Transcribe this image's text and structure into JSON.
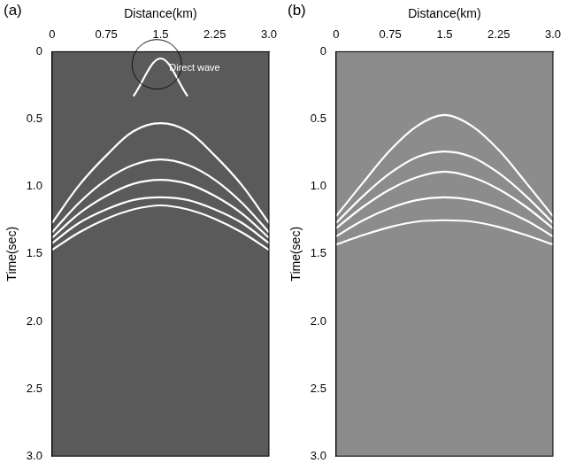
{
  "chart_data": [
    {
      "type": "line",
      "title": "(a)",
      "x_label": "Distance(km)",
      "y_label": "Time(sec)",
      "x": [
        0,
        0.375,
        0.75,
        1.125,
        1.5,
        1.875,
        2.25,
        2.625,
        3.0
      ],
      "series": [
        {
          "color": "#ffffff",
          "values": [
            null,
            null,
            null,
            0.33,
            0.05,
            0.33,
            null,
            null,
            null
          ]
        },
        {
          "color": "#ffffff",
          "values": [
            1.27,
            0.99,
            0.77,
            0.59,
            0.53,
            0.59,
            0.77,
            0.99,
            1.27
          ]
        },
        {
          "color": "#ffffff",
          "values": [
            1.34,
            1.12,
            0.95,
            0.84,
            0.8,
            0.84,
            0.95,
            1.12,
            1.34
          ]
        },
        {
          "color": "#ffffff",
          "values": [
            1.38,
            1.2,
            1.07,
            0.98,
            0.95,
            0.98,
            1.07,
            1.2,
            1.38
          ]
        },
        {
          "color": "#ffffff",
          "values": [
            1.42,
            1.27,
            1.17,
            1.1,
            1.08,
            1.1,
            1.17,
            1.27,
            1.42
          ]
        },
        {
          "color": "#ffffff",
          "values": [
            1.47,
            1.34,
            1.24,
            1.17,
            1.14,
            1.17,
            1.24,
            1.34,
            1.47
          ]
        }
      ],
      "annotations": [
        {
          "text": "Direct wave",
          "x": 1.62,
          "y": 0.12
        }
      ],
      "xlim": [
        0,
        3.0
      ],
      "ylim": [
        3.0,
        0
      ],
      "xticks": [
        0,
        0.75,
        1.5,
        2.25,
        {
          "value": 3.0,
          "label": "3.0"
        }
      ],
      "yticks": [
        0,
        0.5,
        {
          "value": 1.0,
          "label": "1.0"
        },
        1.5,
        {
          "value": 2.0,
          "label": "2.0"
        },
        2.5,
        {
          "value": 3.0,
          "label": "3.0"
        }
      ],
      "grid": false
    },
    {
      "type": "line",
      "title": "(b)",
      "x_label": "Distance(km)",
      "y_label": "Time(sec)",
      "x": [
        0,
        0.375,
        0.75,
        1.125,
        1.5,
        1.875,
        2.25,
        2.625,
        3.0
      ],
      "series": [
        {
          "color": "#ffffff",
          "values": [
            1.22,
            0.97,
            0.73,
            0.55,
            0.47,
            0.55,
            0.73,
            0.97,
            1.22
          ]
        },
        {
          "color": "#ffffff",
          "values": [
            1.27,
            1.07,
            0.9,
            0.78,
            0.74,
            0.78,
            0.9,
            1.07,
            1.27
          ]
        },
        {
          "color": "#ffffff",
          "values": [
            1.31,
            1.15,
            1.02,
            0.93,
            0.89,
            0.93,
            1.02,
            1.15,
            1.31
          ]
        },
        {
          "color": "#ffffff",
          "values": [
            1.37,
            1.25,
            1.16,
            1.1,
            1.08,
            1.1,
            1.16,
            1.25,
            1.37
          ]
        },
        {
          "color": "#ffffff",
          "values": [
            1.43,
            1.36,
            1.3,
            1.26,
            1.25,
            1.26,
            1.3,
            1.36,
            1.43
          ]
        }
      ],
      "xlim": [
        0,
        3.0
      ],
      "ylim": [
        3.0,
        0
      ],
      "xticks": [
        0,
        0.75,
        1.5,
        2.25,
        {
          "value": 3.0,
          "label": "3.0"
        }
      ],
      "yticks": [
        0,
        0.5,
        {
          "value": 1.0,
          "label": "1.0"
        },
        1.5,
        {
          "value": 2.0,
          "label": "2.0"
        },
        2.5,
        {
          "value": 3.0,
          "label": "3.0"
        }
      ],
      "grid": false
    }
  ]
}
